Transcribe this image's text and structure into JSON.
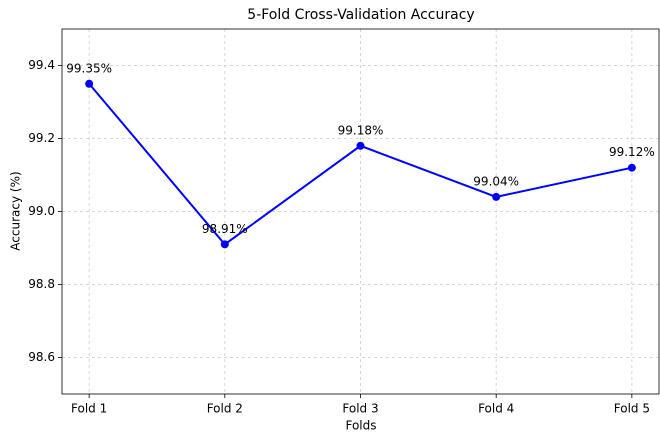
{
  "chart_data": {
    "type": "line",
    "title": "5-Fold Cross-Validation Accuracy",
    "xlabel": "Folds",
    "ylabel": "Accuracy (%)",
    "categories": [
      "Fold 1",
      "Fold 2",
      "Fold 3",
      "Fold 4",
      "Fold 5"
    ],
    "series": [
      {
        "name": "Accuracy",
        "color": "#0000ff",
        "values": [
          99.35,
          98.91,
          99.18,
          99.04,
          99.12
        ],
        "value_labels": [
          "99.35%",
          "98.91%",
          "99.18%",
          "99.04%",
          "99.12%"
        ]
      }
    ],
    "ylim": [
      98.5,
      99.5
    ],
    "yticks": [
      98.6,
      98.8,
      {
        "value": 99,
        "label": "99.0"
      },
      99.2,
      99.4
    ],
    "grid": true
  }
}
